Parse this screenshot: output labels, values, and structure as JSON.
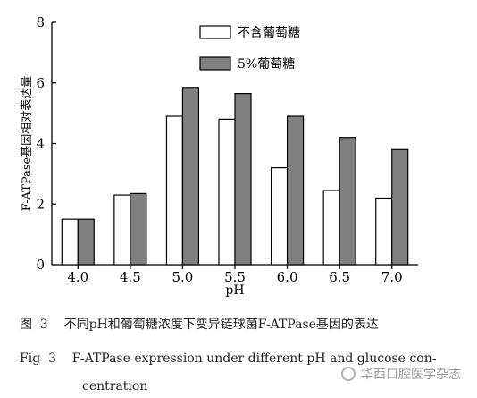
{
  "chart_data": {
    "type": "bar",
    "categories": [
      "4.0",
      "4.5",
      "5.0",
      "5.5",
      "6.0",
      "6.5",
      "7.0"
    ],
    "series": [
      {
        "name": "不含葡萄糖",
        "color": "#ffffff",
        "values": [
          1.5,
          2.3,
          4.9,
          4.8,
          3.2,
          2.45,
          2.2
        ]
      },
      {
        "name": "5%葡萄糖",
        "color": "#808080",
        "values": [
          1.5,
          2.35,
          5.85,
          5.65,
          4.9,
          4.2,
          3.8
        ]
      }
    ],
    "xlabel": "pH",
    "ylabel": "F-ATPase基因相对表达量",
    "ylim": [
      0,
      8
    ],
    "yticks": [
      0,
      2,
      4,
      6,
      8
    ],
    "legend_position": "top-center",
    "grid": false
  },
  "caption": {
    "zh_label": "图",
    "zh_num": "3",
    "zh_text": "不同pH和葡萄糖浓度下变异链球菌F-ATPase基因的表达",
    "en_label": "Fig",
    "en_num": "3",
    "en_text": "F-ATPase expression under different pH and glucose con-",
    "en_text2": "centration"
  },
  "watermark": "华西口腔医学杂志"
}
